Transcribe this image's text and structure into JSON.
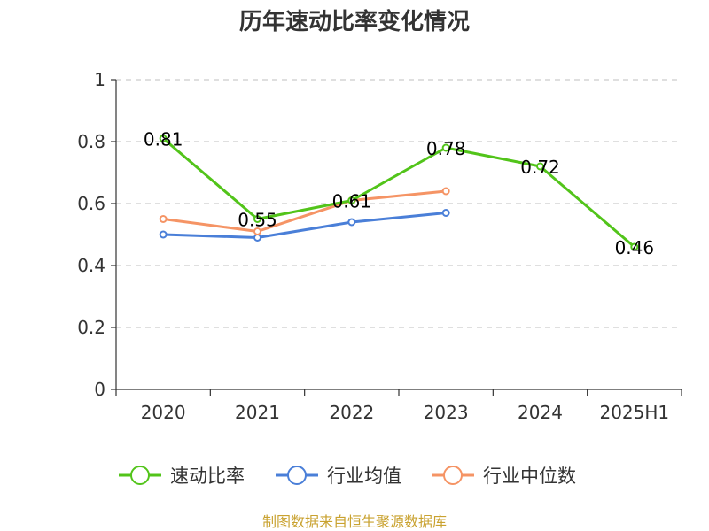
{
  "chart_data": {
    "type": "line",
    "title": "历年速动比率变化情况",
    "categories": [
      "2020",
      "2021",
      "2022",
      "2023",
      "2024",
      "2025H1"
    ],
    "ylim": [
      0,
      1
    ],
    "yticks": [
      "0",
      "0.2",
      "0.4",
      "0.6",
      "0.8",
      "1"
    ],
    "ytick_values": [
      0,
      0.2,
      0.4,
      0.6,
      0.8,
      1
    ],
    "grid": true,
    "legend_position": "bottom",
    "series": [
      {
        "name": "速动比率",
        "color": "#52c41a",
        "values": [
          0.81,
          0.55,
          0.61,
          0.78,
          0.72,
          0.46
        ],
        "labels": [
          "0.81",
          "0.55",
          "0.61",
          "0.78",
          "0.72",
          "0.46"
        ],
        "show_labels": true
      },
      {
        "name": "行业均值",
        "color": "#4a7fd8",
        "values": [
          0.5,
          0.49,
          0.54,
          0.57,
          null,
          null
        ],
        "show_labels": false
      },
      {
        "name": "行业中位数",
        "color": "#f59465",
        "values": [
          0.55,
          0.51,
          0.61,
          0.64,
          null,
          null
        ],
        "show_labels": false
      }
    ],
    "source": "制图数据来自恒生聚源数据库"
  }
}
